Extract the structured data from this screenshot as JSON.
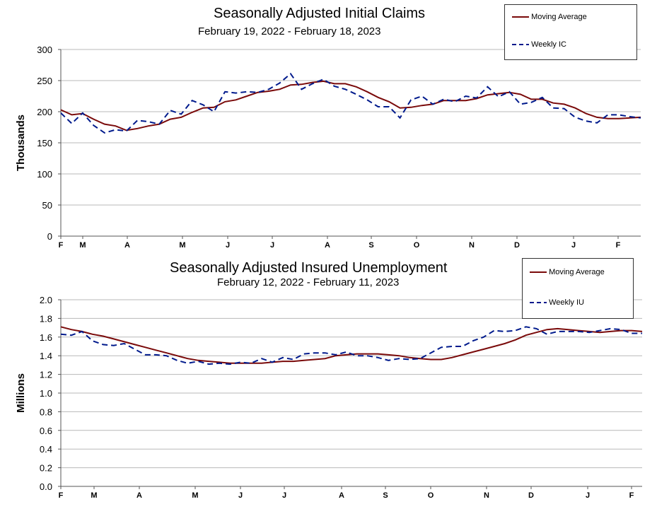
{
  "colors": {
    "moving_average": "#7a0a0a",
    "weekly": "#001a8c",
    "grid": "#b8b8b8",
    "axis": "#555555"
  },
  "chart_data": [
    {
      "type": "line",
      "title": "Seasonally Adjusted Initial Claims",
      "subtitle": "February 19, 2022 - February 18, 2023",
      "ylabel": "Thousands",
      "xlabel": "",
      "ylim": [
        0,
        300
      ],
      "yticks": [
        "0",
        "50",
        "100",
        "150",
        "200",
        "250",
        "300"
      ],
      "month_labels": [
        "F",
        "M",
        "A",
        "M",
        "J",
        "J",
        "A",
        "S",
        "O",
        "N",
        "D",
        "J",
        "F"
      ],
      "grid": true,
      "legend_position": "top-right",
      "series": [
        {
          "name": "Moving Average",
          "style": "solid",
          "values": [
            203,
            195,
            197,
            188,
            180,
            177,
            170,
            173,
            177,
            180,
            188,
            191,
            199,
            206,
            207,
            216,
            219,
            225,
            231,
            233,
            236,
            243,
            244,
            247,
            249,
            245,
            245,
            240,
            232,
            223,
            216,
            206,
            207,
            210,
            212,
            218,
            218,
            218,
            221,
            227,
            229,
            231,
            228,
            220,
            220,
            214,
            212,
            206,
            197,
            191,
            189,
            189,
            190,
            191
          ]
        },
        {
          "name": "Weekly IC",
          "style": "dashed",
          "values": [
            198,
            181,
            198,
            178,
            166,
            171,
            169,
            186,
            184,
            180,
            202,
            196,
            218,
            211,
            200,
            232,
            230,
            232,
            231,
            236,
            246,
            261,
            236,
            245,
            252,
            241,
            236,
            228,
            219,
            208,
            208,
            190,
            219,
            225,
            212,
            220,
            216,
            225,
            222,
            240,
            224,
            232,
            212,
            215,
            223,
            206,
            205,
            191,
            185,
            182,
            195,
            195,
            192,
            190
          ]
        }
      ]
    },
    {
      "type": "line",
      "title": "Seasonally Adjusted Insured Unemployment",
      "subtitle": "February 12, 2022 - February 11, 2023",
      "ylabel": "Millions",
      "xlabel": "",
      "ylim": [
        0,
        2.0
      ],
      "yticks": [
        "0.0",
        "0.2",
        "0.4",
        "0.6",
        "0.8",
        "1.0",
        "1.2",
        "1.4",
        "1.6",
        "1.8",
        "2.0"
      ],
      "month_labels": [
        "F",
        "M",
        "A",
        "M",
        "J",
        "J",
        "A",
        "S",
        "O",
        "N",
        "D",
        "J",
        "F"
      ],
      "grid": true,
      "legend_position": "top-right",
      "series": [
        {
          "name": "Moving Average",
          "style": "solid",
          "values": [
            1.71,
            1.68,
            1.66,
            1.63,
            1.61,
            1.58,
            1.55,
            1.52,
            1.49,
            1.46,
            1.43,
            1.4,
            1.37,
            1.35,
            1.34,
            1.33,
            1.32,
            1.32,
            1.32,
            1.32,
            1.33,
            1.34,
            1.34,
            1.35,
            1.36,
            1.37,
            1.4,
            1.41,
            1.42,
            1.42,
            1.42,
            1.41,
            1.4,
            1.38,
            1.37,
            1.36,
            1.36,
            1.38,
            1.41,
            1.44,
            1.47,
            1.5,
            1.53,
            1.57,
            1.62,
            1.65,
            1.68,
            1.69,
            1.68,
            1.67,
            1.66,
            1.65,
            1.66,
            1.67,
            1.67,
            1.66
          ]
        },
        {
          "name": "Weekly IU",
          "style": "dashed",
          "values": [
            1.63,
            1.62,
            1.66,
            1.56,
            1.52,
            1.51,
            1.53,
            1.47,
            1.41,
            1.41,
            1.4,
            1.35,
            1.32,
            1.34,
            1.31,
            1.32,
            1.31,
            1.33,
            1.32,
            1.37,
            1.33,
            1.38,
            1.36,
            1.42,
            1.43,
            1.43,
            1.41,
            1.44,
            1.4,
            1.4,
            1.38,
            1.35,
            1.37,
            1.36,
            1.37,
            1.43,
            1.49,
            1.5,
            1.5,
            1.56,
            1.6,
            1.67,
            1.66,
            1.67,
            1.71,
            1.69,
            1.63,
            1.66,
            1.66,
            1.66,
            1.65,
            1.67,
            1.69,
            1.68,
            1.64,
            1.64
          ]
        }
      ]
    }
  ]
}
